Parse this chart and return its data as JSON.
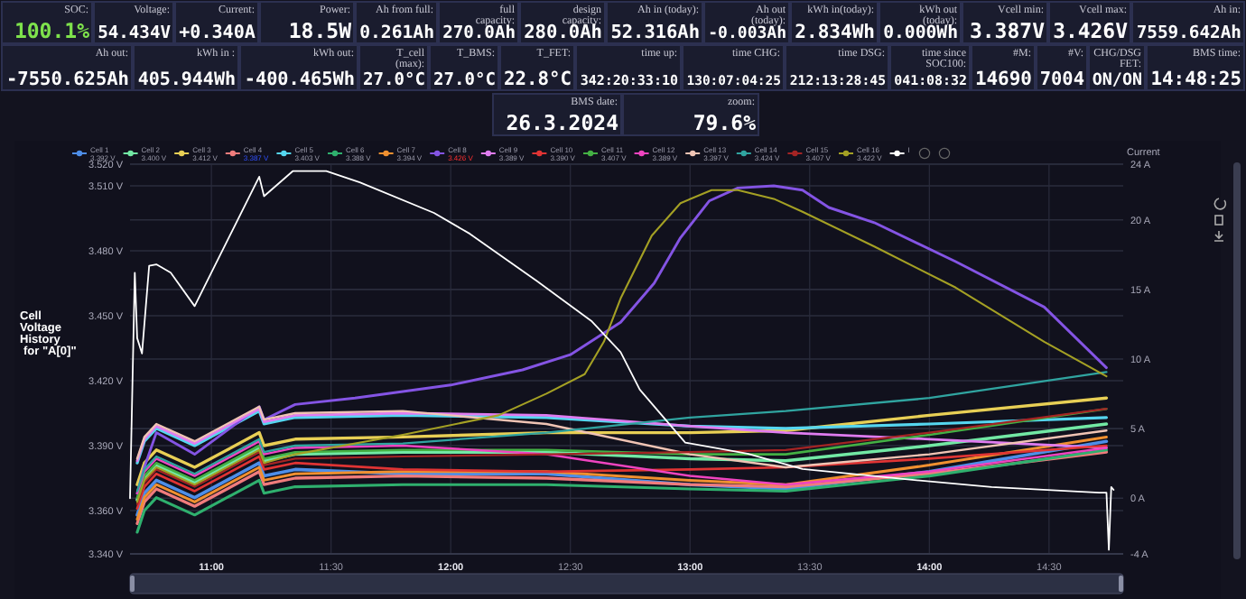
{
  "chart_data": [
    {
      "type": "other",
      "annotations": [
        "SOC:",
        "100.1%",
        "Voltage:",
        "54.434V",
        "Current:",
        "+0.340A",
        "Power:",
        "18.5W",
        "Ah from full:",
        "0.261Ah",
        "full capacity:",
        "270.0Ah",
        "design capacity:",
        "280.0Ah",
        "Ah in (today):",
        "52.316Ah",
        "Ah out (today):",
        "-0.003Ah",
        "kWh in(today):",
        "2.834Wh",
        "kWh out (today):",
        "0.000Wh",
        "Vcell min:",
        "3.387V",
        "Vcell max:",
        "3.426V",
        "Ah in:",
        "7559.642Ah",
        "Ah out:",
        "-7550.625Ah",
        "kWh in :",
        "405.944Wh",
        "kWh out:",
        "-400.465Wh",
        "T_cell (max):",
        "27.0°C",
        "T_BMS:",
        "27.0°C",
        "T_FET:",
        "22.8°C",
        "time up:",
        "342:20:33:10",
        "time CHG:",
        "130:07:04:25",
        "time DSG:",
        "212:13:28:45",
        "time since SOC100:",
        "041:08:32",
        "#M:",
        "14690",
        "#V:",
        "7004",
        "CHG/DSG FET:",
        "ON/ON",
        "BMS time:",
        "14:48:25",
        "BMS date:",
        "26.3.2024",
        "zoom:",
        "79.6%"
      ]
    },
    {
      "type": "line",
      "ylabel": "Cell Voltage History for \"A[0]\"",
      "y2label": "Current",
      "legend": "top",
      "grid": true,
      "x": [
        10.69,
        10.72,
        10.77,
        10.93,
        11.2,
        11.22,
        11.35,
        11.8,
        12.4,
        13.0,
        13.4,
        14.0,
        14.74
      ],
      "xlim": [
        10.66,
        14.81
      ],
      "xticks": [
        {
          "value": 11,
          "label": "11:00"
        },
        {
          "value": 11.5,
          "label": "11:30"
        },
        {
          "value": 12,
          "label": "12:00"
        },
        {
          "value": 12.5,
          "label": "12:30"
        },
        {
          "value": 13,
          "label": "13:00"
        },
        {
          "value": 13.5,
          "label": "13:30"
        },
        {
          "value": 14,
          "label": "14:00"
        },
        {
          "value": 14.5,
          "label": "14:30"
        }
      ],
      "ylim": [
        3.34,
        3.52
      ],
      "yticks": [
        {
          "value": 3.34,
          "label": "3.340 V"
        },
        {
          "value": 3.36,
          "label": "3.360 V"
        },
        {
          "value": 3.39,
          "label": "3.390 V"
        },
        {
          "value": 3.42,
          "label": "3.420 V"
        },
        {
          "value": 3.45,
          "label": "3.450 V"
        },
        {
          "value": 3.48,
          "label": "3.480 V"
        },
        {
          "value": 3.51,
          "label": "3.510 V"
        },
        {
          "value": 3.52,
          "label": "3.520 V"
        }
      ],
      "y2lim": [
        -4,
        24
      ],
      "y2ticks": [
        {
          "value": -4,
          "label": "-4 A"
        },
        {
          "value": 0,
          "label": "0 A"
        },
        {
          "value": 5,
          "label": "5 A"
        },
        {
          "value": 10,
          "label": "10 A"
        },
        {
          "value": 15,
          "label": "15 A"
        },
        {
          "value": 20,
          "label": "20 A"
        },
        {
          "value": 24,
          "label": "24 A"
        }
      ],
      "annotations": [
        "3.392 V",
        "3.400 V",
        "3.412 V",
        "3.387 V",
        "3.403 V",
        "3.388 V",
        "3.394 V",
        "3.426 V",
        "3.389 V",
        "3.390 V",
        "3.407 V",
        "3.389 V",
        "3.397 V",
        "3.424 V",
        "3.407 V",
        "3.422 V"
      ],
      "series": [
        {
          "name": "Cell 1",
          "color": "#4e8ee8",
          "values": [
            3.358,
            3.368,
            3.374,
            3.366,
            3.382,
            3.376,
            3.379,
            3.377,
            3.377,
            3.372,
            3.37,
            3.378,
            3.392
          ]
        },
        {
          "name": "Cell 2",
          "color": "#72e8a4",
          "values": [
            3.365,
            3.375,
            3.381,
            3.373,
            3.389,
            3.383,
            3.386,
            3.387,
            3.387,
            3.384,
            3.383,
            3.39,
            3.4
          ]
        },
        {
          "name": "Cell 3",
          "color": "#e8cf55",
          "values": [
            3.372,
            3.382,
            3.388,
            3.38,
            3.396,
            3.39,
            3.393,
            3.394,
            3.396,
            3.396,
            3.397,
            3.404,
            3.412
          ]
        },
        {
          "name": "Cell 4",
          "color": "#f07c7c",
          "values": [
            3.354,
            3.364,
            3.37,
            3.362,
            3.378,
            3.372,
            3.375,
            3.376,
            3.375,
            3.372,
            3.371,
            3.377,
            3.387
          ]
        },
        {
          "name": "Cell 5",
          "color": "#55d6f0",
          "values": [
            3.382,
            3.392,
            3.398,
            3.39,
            3.406,
            3.4,
            3.403,
            3.404,
            3.403,
            3.399,
            3.398,
            3.4,
            3.403
          ]
        },
        {
          "name": "Cell 6",
          "color": "#2fb06e",
          "values": [
            3.35,
            3.36,
            3.366,
            3.358,
            3.374,
            3.368,
            3.371,
            3.372,
            3.372,
            3.37,
            3.369,
            3.376,
            3.388
          ]
        },
        {
          "name": "Cell 7",
          "color": "#f09030",
          "values": [
            3.356,
            3.366,
            3.372,
            3.364,
            3.38,
            3.374,
            3.377,
            3.378,
            3.378,
            3.374,
            3.372,
            3.381,
            3.394
          ]
        },
        {
          "name": "Cell 8",
          "color": "#8454e4",
          "x": [
            10.69,
            10.72,
            10.77,
            10.93,
            11.2,
            11.22,
            11.35,
            11.6,
            12.0,
            12.3,
            12.5,
            12.71,
            12.85,
            12.96,
            13.08,
            13.2,
            13.35,
            13.47,
            13.58,
            13.77,
            14.11,
            14.48,
            14.74
          ],
          "values": [
            3.368,
            3.38,
            3.396,
            3.386,
            3.408,
            3.402,
            3.409,
            3.412,
            3.418,
            3.425,
            3.432,
            3.447,
            3.465,
            3.486,
            3.503,
            3.509,
            3.51,
            3.508,
            3.5,
            3.493,
            3.475,
            3.454,
            3.426
          ]
        },
        {
          "name": "Cell 9",
          "color": "#e07cf0",
          "values": [
            3.383,
            3.393,
            3.399,
            3.391,
            3.407,
            3.401,
            3.404,
            3.405,
            3.404,
            3.399,
            3.396,
            3.393,
            3.389
          ]
        },
        {
          "name": "Cell 10",
          "color": "#e03434",
          "values": [
            3.361,
            3.371,
            3.377,
            3.369,
            3.385,
            3.379,
            3.382,
            3.379,
            3.378,
            3.379,
            3.38,
            3.384,
            3.39
          ]
        },
        {
          "name": "Cell 11",
          "color": "#44b044",
          "values": [
            3.366,
            3.376,
            3.382,
            3.374,
            3.39,
            3.384,
            3.387,
            3.388,
            3.388,
            3.386,
            3.386,
            3.395,
            3.407
          ]
        },
        {
          "name": "Cell 12",
          "color": "#f044c0",
          "values": [
            3.368,
            3.378,
            3.384,
            3.376,
            3.392,
            3.386,
            3.389,
            3.39,
            3.386,
            3.376,
            3.372,
            3.378,
            3.389
          ]
        },
        {
          "name": "Cell 13",
          "color": "#f0c4b4",
          "values": [
            3.384,
            3.394,
            3.4,
            3.392,
            3.408,
            3.402,
            3.405,
            3.406,
            3.4,
            3.386,
            3.38,
            3.386,
            3.397
          ]
        },
        {
          "name": "Cell 14",
          "color": "#30a4a0",
          "values": [
            3.369,
            3.379,
            3.385,
            3.377,
            3.393,
            3.387,
            3.39,
            3.391,
            3.396,
            3.403,
            3.406,
            3.412,
            3.424
          ]
        },
        {
          "name": "Cell 15",
          "color": "#a42424",
          "values": [
            3.363,
            3.373,
            3.379,
            3.371,
            3.387,
            3.381,
            3.384,
            3.385,
            3.386,
            3.387,
            3.388,
            3.396,
            3.407
          ]
        },
        {
          "name": "Cell 16",
          "color": "#a4a024",
          "x": [
            10.69,
            10.72,
            10.77,
            10.93,
            11.2,
            11.22,
            11.35,
            11.8,
            12.2,
            12.4,
            12.56,
            12.64,
            12.71,
            12.84,
            12.96,
            13.09,
            13.2,
            13.35,
            13.47,
            13.77,
            14.11,
            14.48,
            14.74
          ],
          "values": [
            3.364,
            3.374,
            3.38,
            3.372,
            3.388,
            3.382,
            3.386,
            3.395,
            3.404,
            3.414,
            3.423,
            3.438,
            3.458,
            3.487,
            3.502,
            3.508,
            3.508,
            3.504,
            3.498,
            3.482,
            3.463,
            3.438,
            3.422
          ]
        },
        {
          "name": "I",
          "color": "#ffffff",
          "axis": "y2",
          "x": [
            10.66,
            10.68,
            10.69,
            10.71,
            10.74,
            10.77,
            10.83,
            10.93,
            11.2,
            11.22,
            11.34,
            11.48,
            11.62,
            11.93,
            12.08,
            12.36,
            12.59,
            12.71,
            12.79,
            12.98,
            13.24,
            13.47,
            13.88,
            14.26,
            14.71,
            14.74,
            14.75,
            14.76,
            14.77
          ],
          "values": [
            0,
            16.2,
            11.5,
            10.4,
            16.7,
            16.8,
            16.2,
            13.8,
            23.1,
            21.7,
            23.5,
            23.5,
            22.7,
            20.5,
            19.0,
            15.6,
            12.7,
            10.5,
            7.8,
            4.0,
            3.2,
            2.1,
            1.4,
            0.8,
            0.4,
            0.4,
            -3.7,
            0.8,
            0.6
          ]
        }
      ]
    }
  ]
}
